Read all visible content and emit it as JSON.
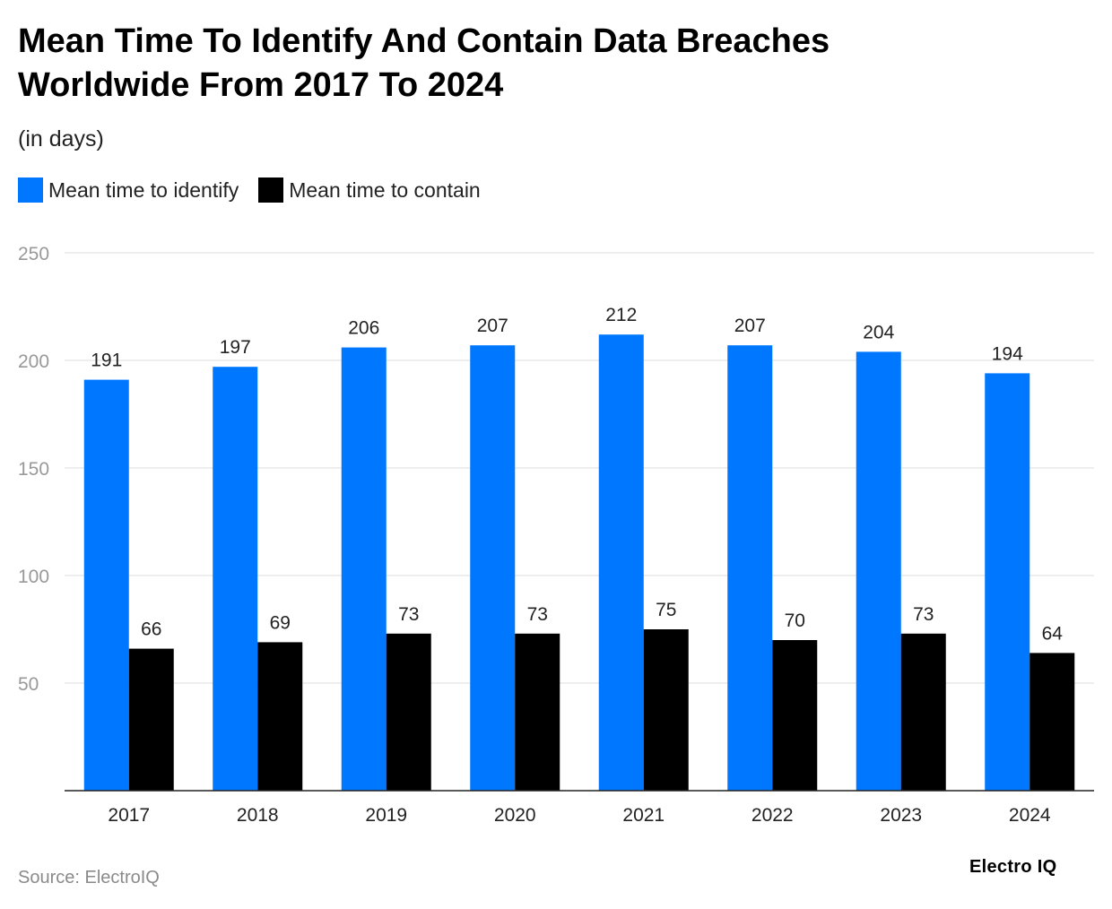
{
  "title": "Mean Time To Identify And Contain Data Breaches Worldwide From 2017 To 2024",
  "subtitle": "(in days)",
  "source": "Source: ElectroIQ",
  "brand": "Electro IQ",
  "colors": {
    "identify": "#0077ff",
    "contain": "#000000",
    "grid": "#dddddd",
    "axis_text": "#999999"
  },
  "chart_data": {
    "type": "bar",
    "categories": [
      "2017",
      "2018",
      "2019",
      "2020",
      "2021",
      "2022",
      "2023",
      "2024"
    ],
    "series": [
      {
        "name": "Mean time to identify",
        "values": [
          191,
          197,
          206,
          207,
          212,
          207,
          204,
          194
        ]
      },
      {
        "name": "Mean time to contain",
        "values": [
          66,
          69,
          73,
          73,
          75,
          70,
          73,
          64
        ]
      }
    ],
    "yticks": [
      50,
      100,
      150,
      200,
      250
    ],
    "ylim": [
      0,
      250
    ],
    "title": "Mean Time To Identify And Contain Data Breaches Worldwide From 2017 To 2024",
    "ylabel": "(in days)",
    "xlabel": "",
    "legend": "top-left"
  }
}
